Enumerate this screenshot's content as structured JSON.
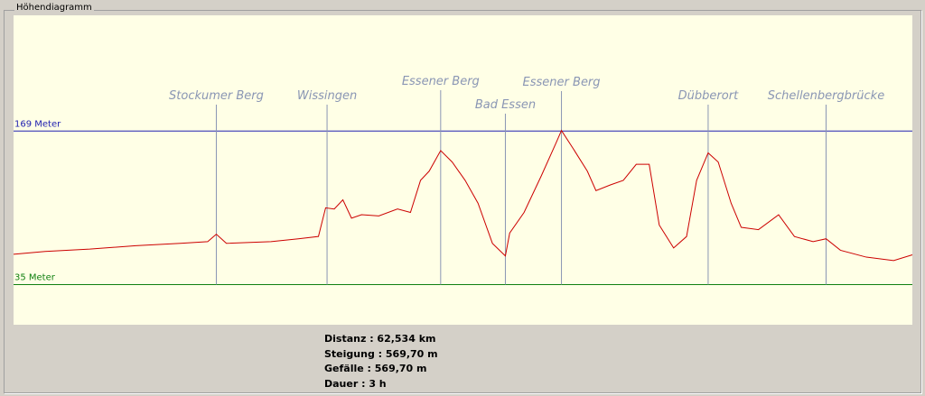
{
  "panel": {
    "title": "Höhendiagramm"
  },
  "chart_data": {
    "type": "line",
    "x": [
      0,
      2.2,
      5.3,
      8.5,
      11.6,
      13.5,
      14.1,
      14.8,
      17.9,
      19.8,
      21.2,
      21.7,
      22.3,
      22.9,
      23.5,
      24.2,
      25.4,
      26.7,
      27.6,
      28.3,
      28.9,
      29.7,
      30.5,
      31.4,
      32.3,
      33.3,
      34.2,
      34.5,
      35.5,
      36.7,
      37.7,
      38.1,
      38.9,
      39.9,
      40.5,
      41.5,
      42.4,
      43.3,
      44.2,
      44.9,
      45.9,
      46.8,
      47.5,
      48.3,
      49.0,
      49.9,
      50.6,
      51.8,
      53.2,
      54.3,
      55.6,
      56.5,
      57.5,
      59.3,
      61.2,
      62.5
    ],
    "values": [
      61.5,
      64,
      66,
      69,
      71,
      72.5,
      79,
      71,
      72.5,
      75,
      77,
      102,
      101,
      109,
      93,
      96,
      95,
      101,
      98,
      126,
      134,
      152,
      142,
      126,
      106,
      71,
      60,
      80,
      98,
      130,
      158,
      169.5,
      154,
      134,
      117,
      122,
      126,
      140,
      140,
      87,
      67,
      77,
      126,
      150,
      142,
      106,
      85,
      83,
      96,
      77,
      72.5,
      75,
      65,
      59,
      56,
      61
    ],
    "color": "#cc0000",
    "xlim": [
      0,
      62.5
    ],
    "ylim": [
      0,
      270
    ],
    "yticks": [
      {
        "value": 169,
        "label": "169 Meter"
      },
      {
        "value": 35,
        "label": "35 Meter"
      }
    ],
    "ytick_colors": [
      "#2020b0",
      "#108010"
    ],
    "markers": [
      {
        "label": "Stockumer Berg",
        "x": 14.1
      },
      {
        "label": "Wissingen",
        "x": 21.8
      },
      {
        "label": "Essener Berg",
        "x": 29.7
      },
      {
        "label": "Bad Essen",
        "x": 34.2
      },
      {
        "label": "Essener Berg",
        "x": 38.1
      },
      {
        "label": "Dübberort",
        "x": 48.3
      },
      {
        "label": "Schellenbergbrücke",
        "x": 56.5
      }
    ],
    "marker_color": "#8a96b4"
  },
  "stats": [
    "Distanz : 62,534 km",
    "Steigung : 569,70 m",
    "Gefälle : 569,70 m",
    "Dauer : 3 h"
  ]
}
